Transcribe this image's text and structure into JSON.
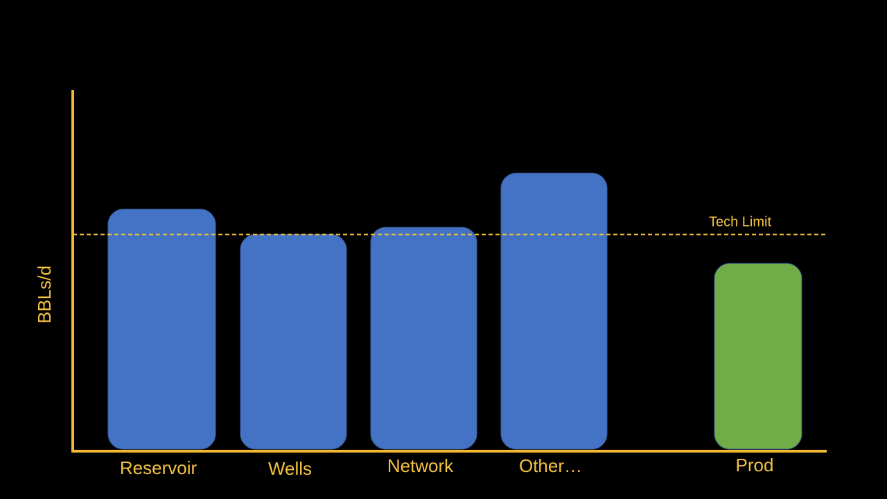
{
  "chart_data": {
    "type": "bar",
    "y_label": "BBLs/d",
    "categories": [
      "Reservoir",
      "Wells",
      "Network",
      "Other…",
      "Prod"
    ],
    "values": [
      67,
      60,
      62,
      77,
      52
    ],
    "colors": [
      "#4472c4",
      "#4472c4",
      "#4472c4",
      "#4472c4",
      "#70ad47"
    ],
    "ylim": [
      0,
      100
    ],
    "reference_line": {
      "value": 60,
      "label": "Tech Limit",
      "color": "#f2c23a"
    }
  }
}
